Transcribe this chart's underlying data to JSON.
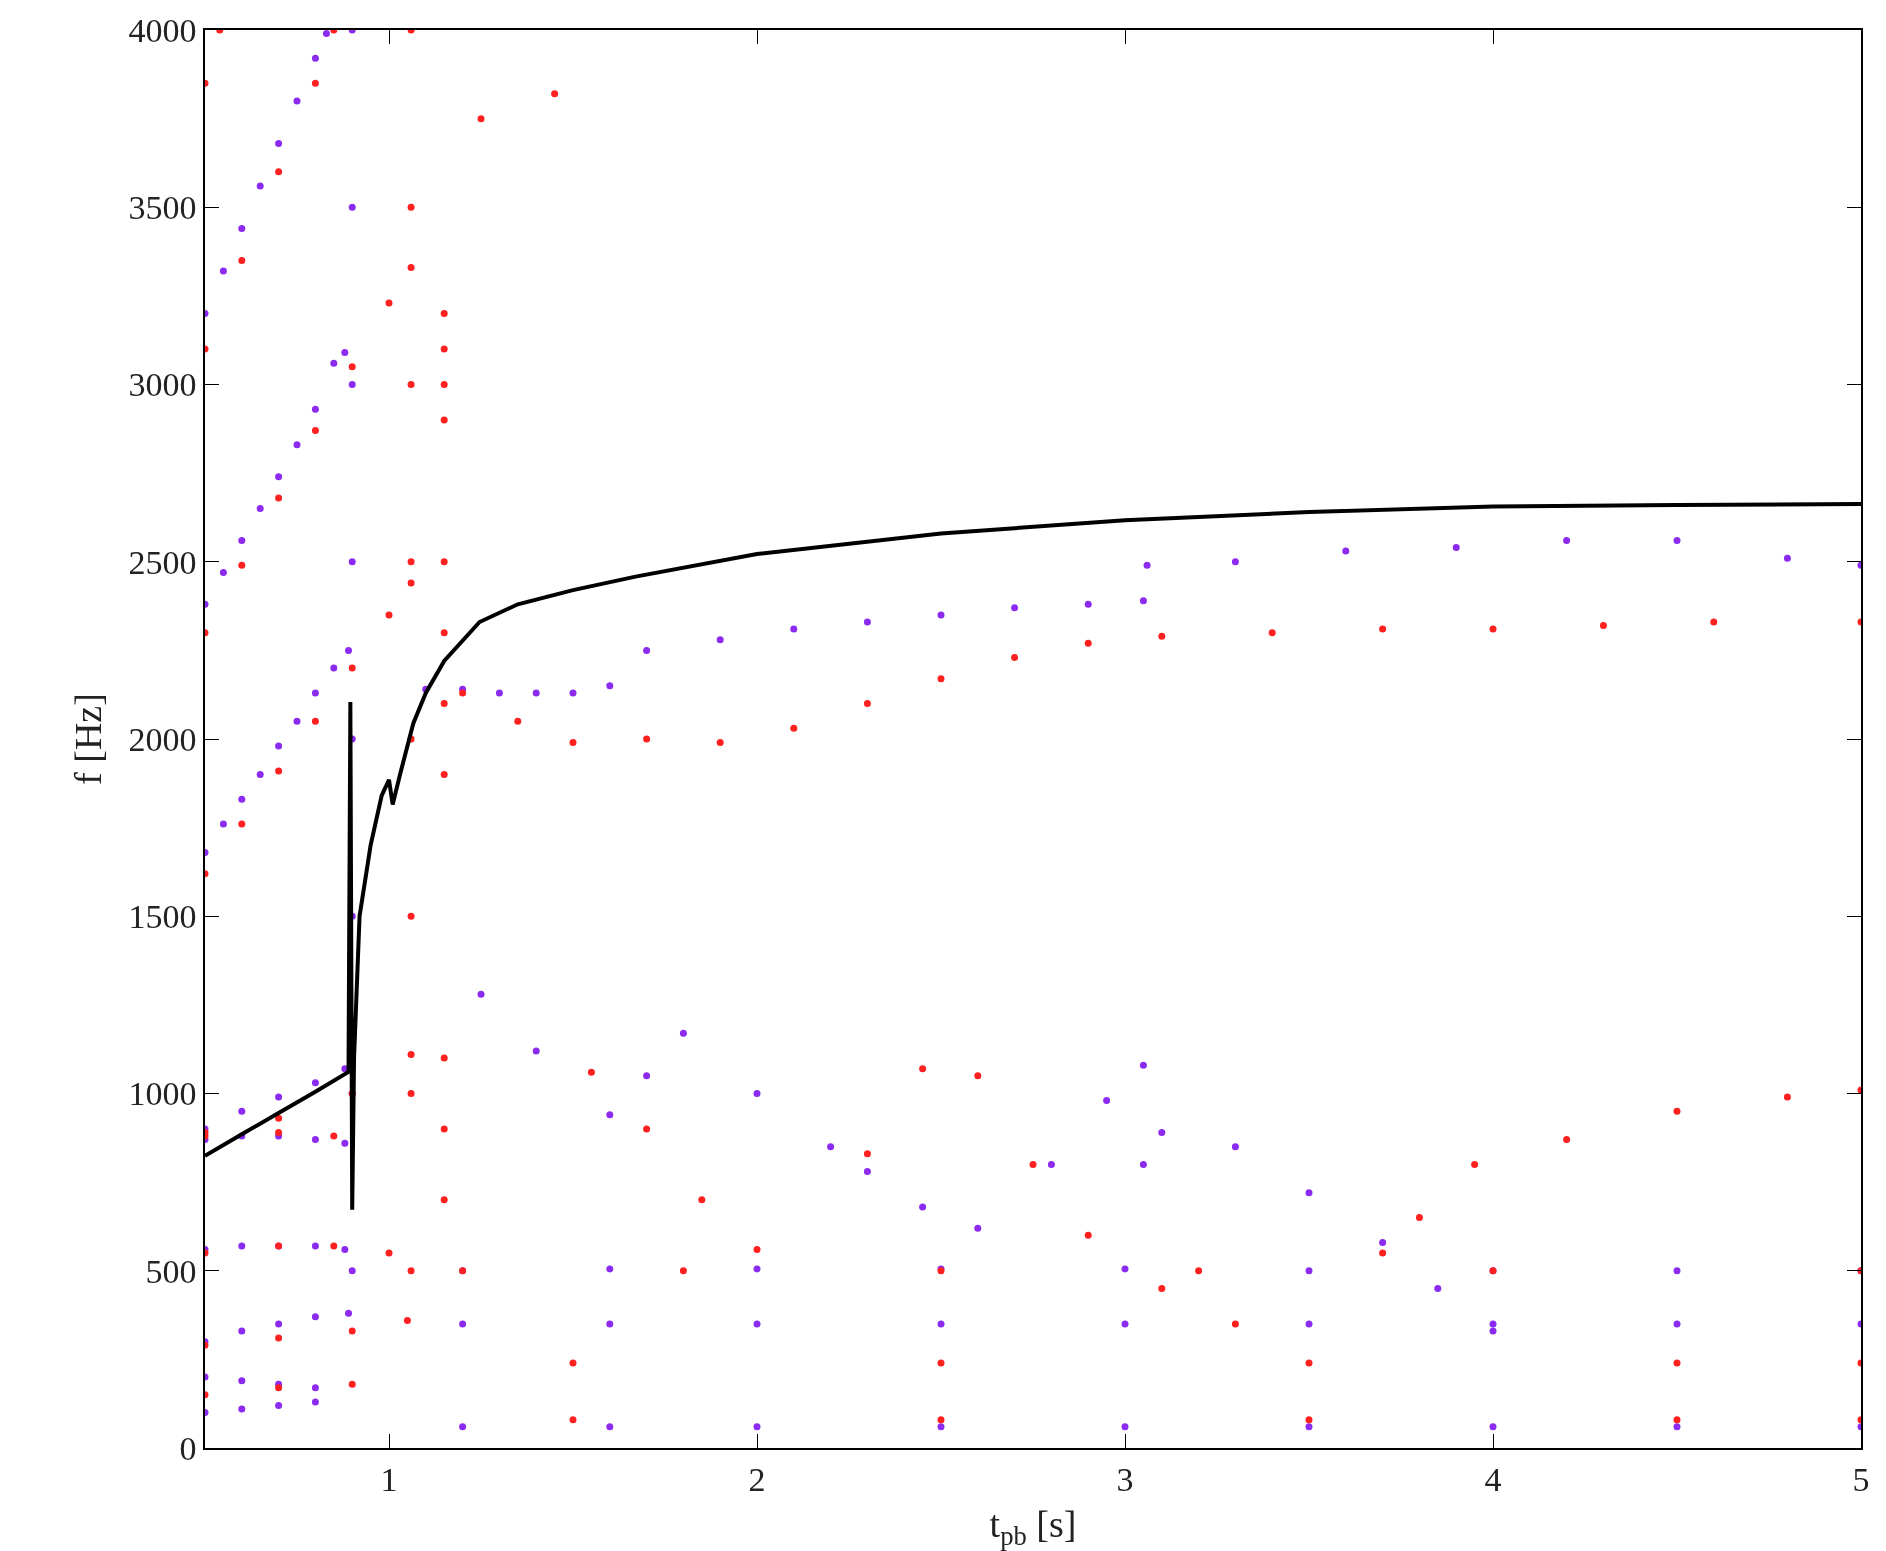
{
  "chart_data": {
    "type": "scatter",
    "xlabel": "t$_{pb}$ [s]",
    "ylabel": "f [Hz]",
    "xlim": [
      0.5,
      5
    ],
    "ylim": [
      0,
      4000
    ],
    "xticks": [
      1,
      2,
      3,
      4,
      5
    ],
    "yticks": [
      0,
      500,
      1000,
      1500,
      2000,
      2500,
      3000,
      3500,
      4000
    ],
    "marker": "circle",
    "series": [
      {
        "color": "#8c2bf0",
        "x": [
          0.5,
          0.55,
          0.6,
          0.65,
          0.7,
          0.75,
          0.8,
          0.85,
          0.89,
          0.5,
          0.55,
          0.6,
          0.65,
          0.7,
          0.75,
          0.8,
          0.85,
          0.88,
          0.5,
          0.55,
          0.6,
          0.65,
          0.7,
          0.75,
          0.8,
          0.83,
          0.5,
          0.6,
          0.7,
          0.8,
          0.88,
          0.5,
          0.6,
          0.7,
          0.8,
          0.88,
          0.5,
          0.6,
          0.7,
          0.8,
          0.88,
          0.5,
          0.6,
          0.7,
          0.8,
          0.89,
          0.5,
          0.6,
          0.7,
          0.8,
          0.5,
          0.6,
          0.7,
          0.8,
          0.9,
          0.9,
          0.9,
          0.9,
          0.9,
          0.9,
          0.9,
          0.9,
          1.1,
          1.2,
          1.3,
          1.4,
          1.5,
          1.6,
          1.7,
          1.9,
          2.1,
          2.3,
          2.5,
          2.7,
          2.9,
          3.05,
          3.06,
          3.3,
          3.6,
          3.9,
          4.2,
          4.5,
          4.8,
          5,
          1.25,
          1.4,
          1.6,
          1.7,
          1.8,
          2.0,
          2.2,
          2.3,
          2.45,
          2.6,
          2.8,
          2.95,
          3.05,
          3.05,
          3.1,
          3.3,
          3.5,
          3.7,
          3.85,
          4.0,
          1.2,
          1.6,
          2,
          2.5,
          3,
          3.5,
          4,
          4.5,
          5,
          1.2,
          1.6,
          2,
          2.5,
          3,
          3.5,
          4,
          4.5,
          5,
          1.2,
          1.6,
          2,
          2.5,
          3,
          3.5,
          4,
          4.5,
          5
        ],
        "values": [
          1680,
          1760,
          1830,
          1900,
          1980,
          2050,
          2130,
          2200,
          2250,
          2380,
          2470,
          2560,
          2650,
          2740,
          2830,
          2930,
          3060,
          3090,
          3200,
          3320,
          3440,
          3560,
          3680,
          3800,
          3920,
          3990,
          900,
          950,
          990,
          1030,
          1070,
          870,
          880,
          880,
          870,
          860,
          560,
          570,
          570,
          570,
          560,
          300,
          330,
          350,
          370,
          380,
          200,
          190,
          180,
          170,
          100,
          110,
          120,
          130,
          500,
          1000,
          1500,
          2000,
          2500,
          3000,
          3500,
          4000,
          2140,
          2140,
          2130,
          2130,
          2130,
          2150,
          2250,
          2280,
          2310,
          2330,
          2350,
          2370,
          2380,
          2390,
          2490,
          2500,
          2530,
          2540,
          2560,
          2560,
          2510,
          2490,
          1280,
          1120,
          940,
          1050,
          1170,
          1000,
          850,
          780,
          680,
          620,
          800,
          980,
          1080,
          800,
          890,
          850,
          720,
          580,
          450,
          330,
          500,
          505,
          505,
          505,
          505,
          500,
          500,
          500,
          500,
          350,
          350,
          350,
          350,
          350,
          350,
          350,
          350,
          350,
          60,
          60,
          60,
          60,
          60,
          60,
          60,
          60,
          60
        ]
      },
      {
        "color": "#ff2020",
        "x": [
          0.5,
          0.6,
          0.7,
          0.8,
          0.9,
          1.0,
          1.06,
          0.5,
          0.6,
          0.7,
          0.8,
          0.9,
          1.0,
          1.06,
          0.5,
          0.6,
          0.7,
          0.8,
          0.85,
          0.5,
          0.54,
          0.5,
          0.7,
          0.9,
          1.06,
          0.5,
          0.7,
          0.85,
          0.5,
          0.7,
          0.85,
          1.0,
          0.5,
          0.7,
          0.9,
          1.05,
          0.5,
          0.7,
          0.9,
          1.06,
          1.06,
          1.06,
          1.06,
          1.06,
          1.06,
          1.06,
          1.06,
          1.15,
          1.15,
          1.15,
          1.15,
          1.15,
          1.15,
          1.15,
          1.15,
          1.15,
          1.15,
          1.15,
          1.2,
          1.35,
          1.5,
          1.7,
          1.9,
          2.1,
          2.3,
          2.5,
          2.7,
          2.9,
          3.1,
          3.4,
          3.7,
          4.0,
          4.3,
          4.6,
          5,
          1.25,
          1.45,
          1.55,
          1.7,
          1.85,
          2.0,
          2.3,
          2.45,
          2.6,
          2.75,
          2.9,
          3.1,
          3.3,
          3.7,
          3.8,
          3.95,
          4.2,
          4.5,
          4.8,
          5,
          1.2,
          1.8,
          2.5,
          3.2,
          4,
          5,
          1.5,
          2.5,
          3.5,
          4.5,
          5,
          1.5,
          2.5,
          3.5,
          4.5,
          5
        ],
        "values": [
          1620,
          1760,
          1910,
          2050,
          2200,
          2350,
          2440,
          2300,
          2490,
          2680,
          2870,
          3050,
          3230,
          3330,
          3100,
          3350,
          3600,
          3850,
          4000,
          3850,
          4000,
          890,
          930,
          1000,
          1110,
          880,
          890,
          880,
          550,
          570,
          570,
          550,
          290,
          310,
          330,
          360,
          150,
          170,
          180,
          500,
          1000,
          1500,
          2000,
          2500,
          3000,
          3500,
          4000,
          2900,
          3000,
          3100,
          3200,
          1900,
          2100,
          2300,
          2500,
          700,
          900,
          1100,
          2130,
          2050,
          1990,
          2000,
          1990,
          2030,
          2100,
          2170,
          2230,
          2270,
          2290,
          2300,
          2310,
          2310,
          2320,
          2330,
          2330,
          3750,
          3820,
          1060,
          900,
          700,
          560,
          830,
          1070,
          1050,
          800,
          600,
          450,
          350,
          550,
          650,
          800,
          870,
          950,
          990,
          1010,
          500,
          500,
          500,
          500,
          500,
          500,
          240,
          240,
          240,
          240,
          240,
          80,
          80,
          80,
          80,
          80
        ]
      },
      {
        "type": "line",
        "color": "#000000",
        "line_style": "solid",
        "marker": "none",
        "x": [
          0.5,
          0.6,
          0.7,
          0.8,
          0.89,
          0.895,
          0.9,
          0.905,
          0.92,
          0.95,
          0.98,
          1.0,
          1.01,
          1.03,
          1.066,
          1.1,
          1.15,
          1.246,
          1.35,
          1.5,
          1.67,
          2.0,
          2.5,
          3.0,
          3.5,
          4.0,
          4.5,
          5.0
        ],
        "values": [
          824,
          885,
          945,
          1005,
          1061,
          2104,
          672,
          1100,
          1500,
          1700,
          1840,
          1885,
          1815,
          1900,
          2044,
          2130,
          2220,
          2330,
          2380,
          2420,
          2458,
          2522,
          2580,
          2617,
          2640,
          2656,
          2660,
          2663
        ]
      }
    ]
  }
}
